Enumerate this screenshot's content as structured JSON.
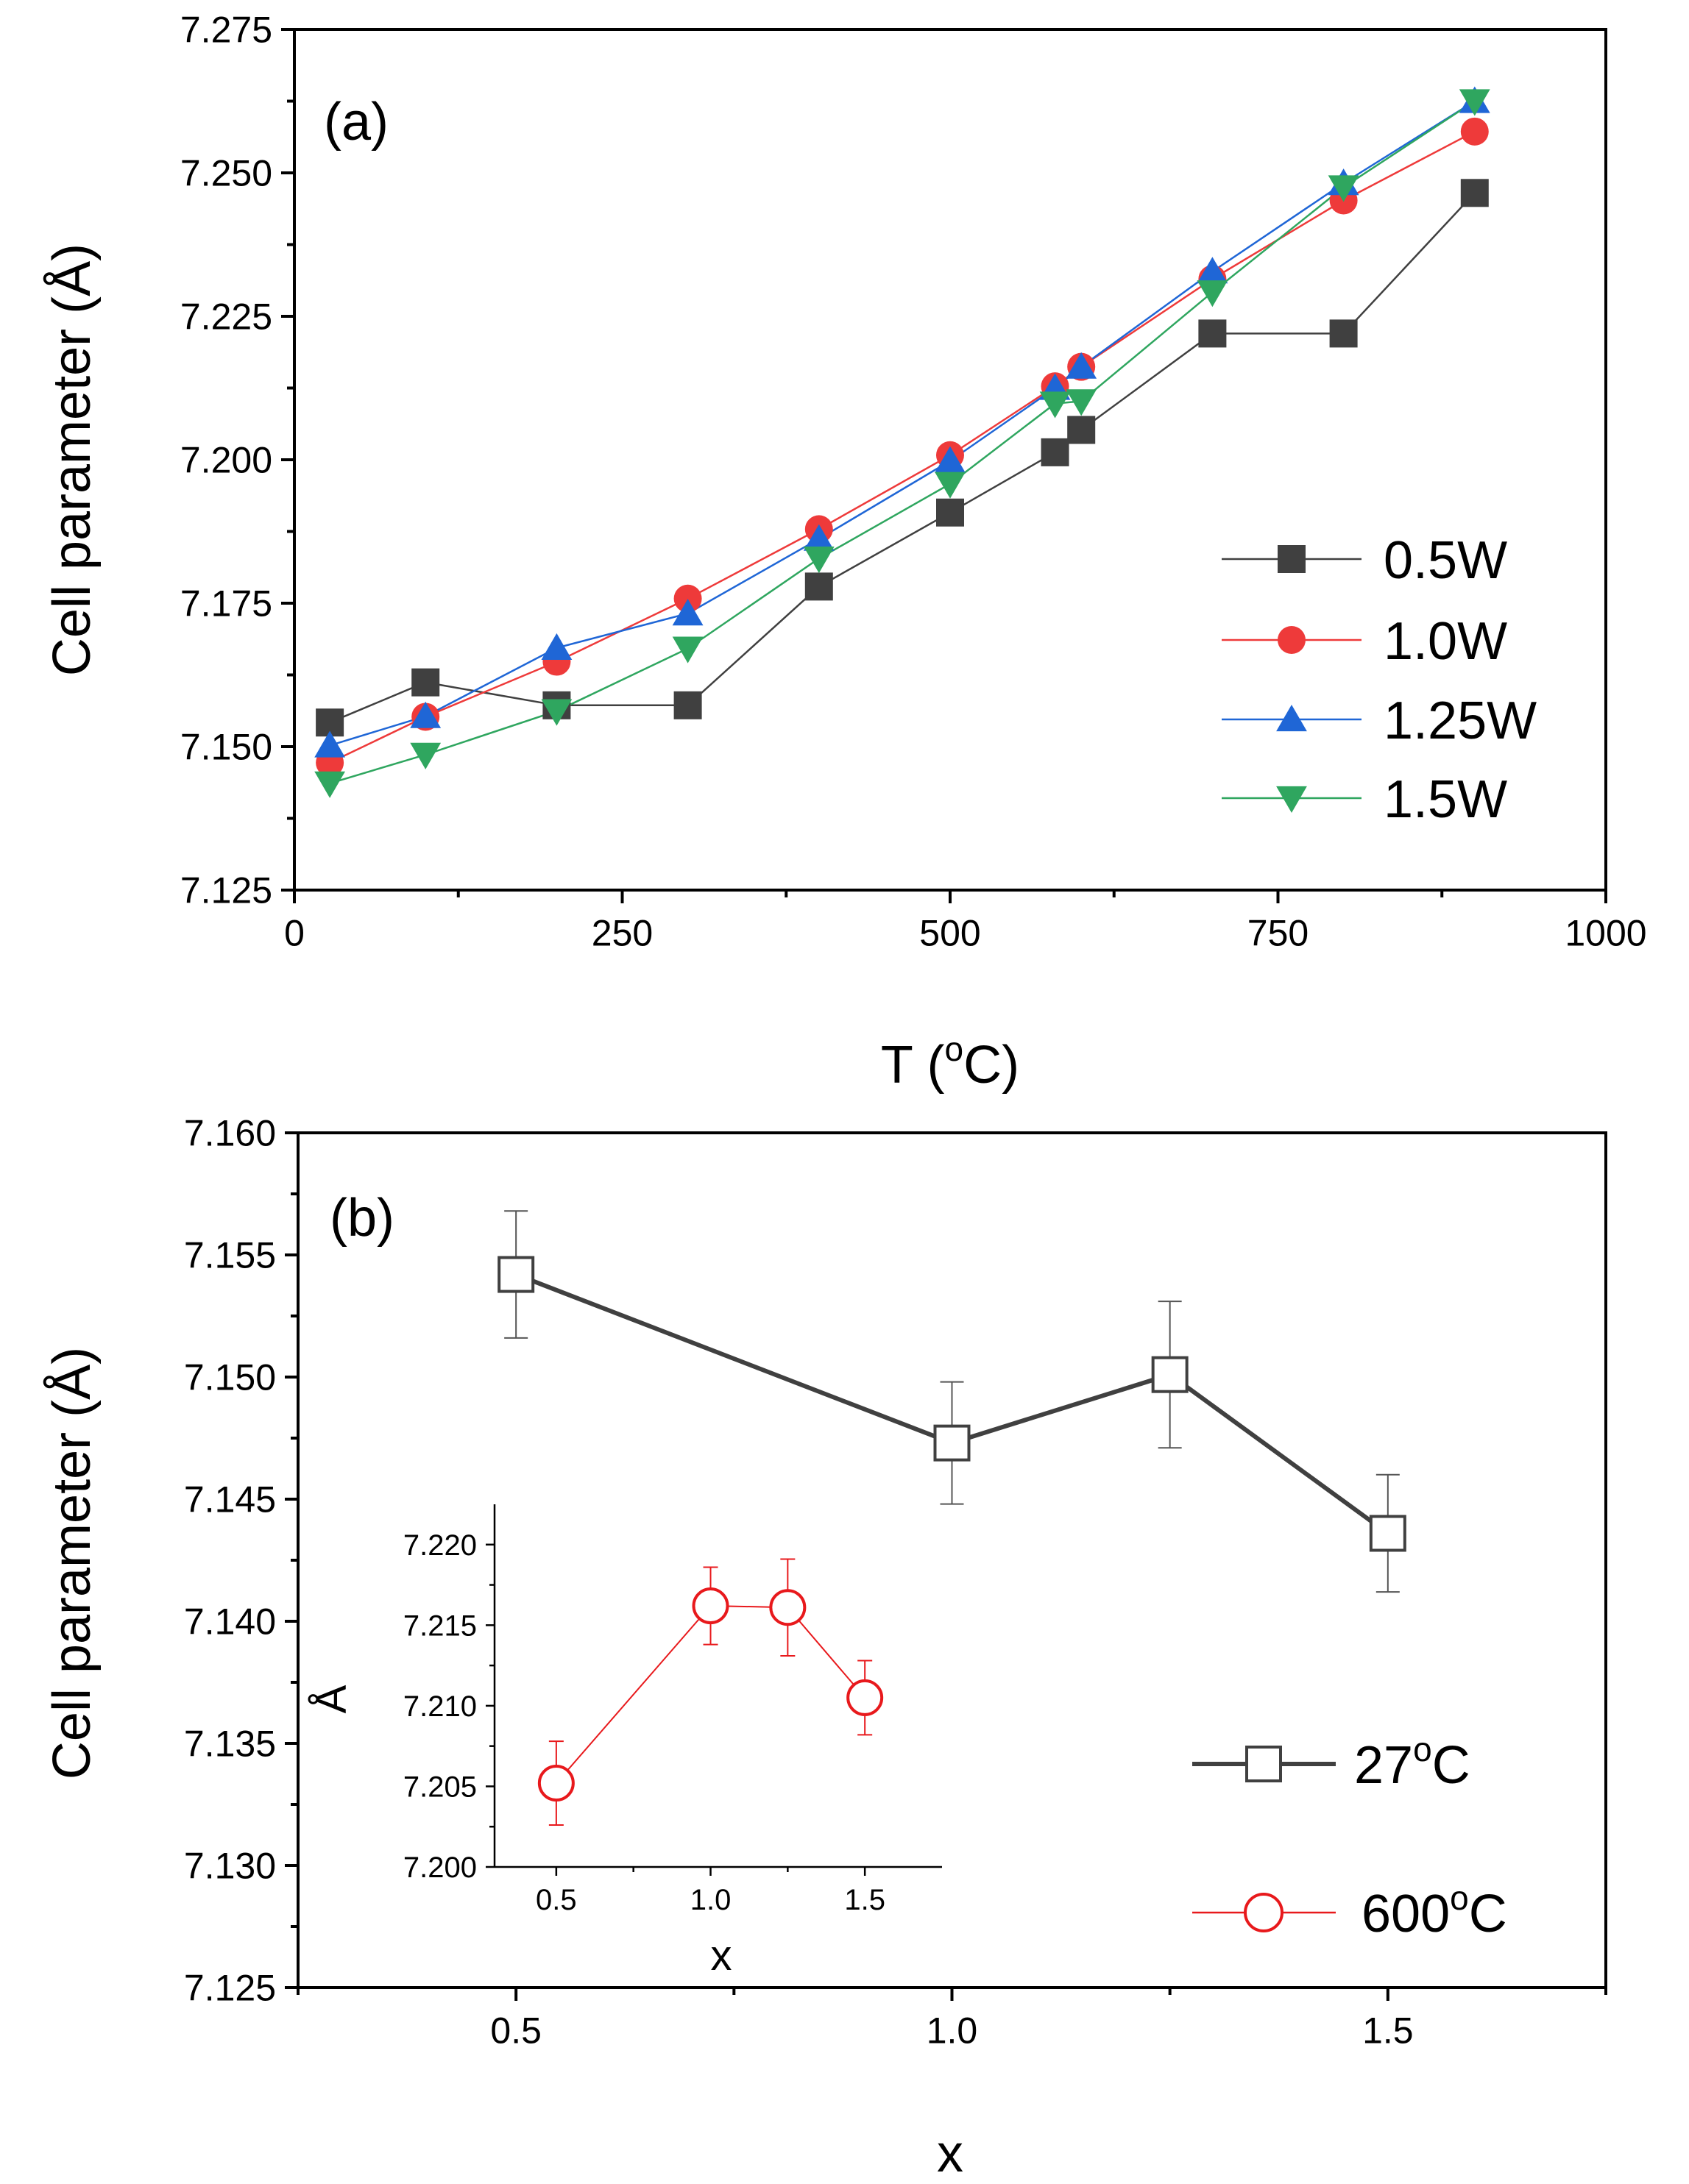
{
  "chart_data": [
    {
      "type": "line",
      "panel_label": "(a)",
      "xlabel_prefix": "T (",
      "xlabel_sup": "o",
      "xlabel_suffix": "C)",
      "ylabel": "Cell parameter (Å)",
      "xlim": [
        0,
        1000
      ],
      "ylim": [
        7.125,
        7.275
      ],
      "xticks": [
        0,
        250,
        500,
        750,
        1000
      ],
      "xtick_labels": [
        "0",
        "250",
        "500",
        "750",
        "1000"
      ],
      "yticks": [
        7.125,
        7.15,
        7.175,
        7.2,
        7.225,
        7.25,
        7.275
      ],
      "ytick_labels": [
        "7.125",
        "7.150",
        "7.175",
        "7.200",
        "7.225",
        "7.250",
        "7.275"
      ],
      "legend_position": "right",
      "series": [
        {
          "name": "0.5W",
          "marker": "square",
          "color": "#404040",
          "x": [
            27,
            100,
            200,
            300,
            400,
            500,
            580,
            600,
            700,
            800,
            900
          ],
          "values": [
            7.1542,
            7.1612,
            7.1572,
            7.1572,
            7.1779,
            7.1908,
            7.2013,
            7.2052,
            7.222,
            7.222,
            7.2465
          ]
        },
        {
          "name": "1.0W",
          "marker": "circle",
          "color": "#ee3a3a",
          "x": [
            27,
            100,
            200,
            300,
            400,
            500,
            580,
            600,
            700,
            800,
            900
          ],
          "values": [
            7.1472,
            7.1552,
            7.1648,
            7.1758,
            7.1879,
            7.2008,
            7.2128,
            7.2162,
            7.2315,
            7.2452,
            7.2572
          ]
        },
        {
          "name": "1.25W",
          "marker": "triangle",
          "color": "#1f66d6",
          "x": [
            27,
            100,
            200,
            300,
            400,
            500,
            580,
            600,
            700,
            800,
            900
          ],
          "values": [
            7.1502,
            7.1553,
            7.1672,
            7.1732,
            7.1862,
            7.1998,
            7.2125,
            7.2162,
            7.2328,
            7.2482,
            7.2625
          ]
        },
        {
          "name": "1.5W",
          "marker": "triangle-down",
          "color": "#2fa65f",
          "x": [
            27,
            100,
            200,
            300,
            400,
            500,
            580,
            600,
            700,
            800,
            900
          ],
          "values": [
            7.1436,
            7.1486,
            7.1562,
            7.1671,
            7.1828,
            7.1958,
            7.2098,
            7.2102,
            7.2292,
            7.2475,
            7.2625
          ]
        }
      ]
    },
    {
      "type": "line",
      "panel_label": "(b)",
      "xlabel": "x",
      "ylabel": "Cell parameter (Å)",
      "xlim": [
        0.25,
        1.75
      ],
      "ylim": [
        7.125,
        7.16
      ],
      "xticks": [
        0.5,
        1.0,
        1.5
      ],
      "xtick_labels": [
        "0.5",
        "1.0",
        "1.5"
      ],
      "yticks": [
        7.125,
        7.13,
        7.135,
        7.14,
        7.145,
        7.15,
        7.155,
        7.16
      ],
      "ytick_labels": [
        "7.125",
        "7.130",
        "7.135",
        "7.140",
        "7.145",
        "7.150",
        "7.155",
        "7.160"
      ],
      "legend_position": "bottom-right",
      "legend": [
        {
          "prefix": "27",
          "sup": "o",
          "suffix": "C",
          "color": "#404040",
          "marker": "open-square"
        },
        {
          "prefix": "600",
          "sup": "o",
          "suffix": "C",
          "color": "#e8191c",
          "marker": "open-circle"
        }
      ],
      "series": [
        {
          "name": "27°C",
          "marker": "open-square",
          "color": "#404040",
          "x": [
            0.5,
            1.0,
            1.25,
            1.5
          ],
          "values": [
            7.1542,
            7.1473,
            7.1501,
            7.1436
          ],
          "error": [
            0.0026,
            0.0025,
            0.003,
            0.0024
          ]
        }
      ],
      "inset": {
        "type": "line",
        "xlabel": "x",
        "ylabel": "Å",
        "xlim": [
          0.3,
          1.75
        ],
        "ylim": [
          7.2,
          7.2225
        ],
        "xticks": [
          0.5,
          1.0,
          1.5
        ],
        "xtick_labels": [
          "0.5",
          "1.0",
          "1.5"
        ],
        "yticks": [
          7.2,
          7.205,
          7.21,
          7.215,
          7.22
        ],
        "ytick_labels": [
          "7.200",
          "7.205",
          "7.210",
          "7.215",
          "7.220"
        ],
        "series": [
          {
            "name": "600°C",
            "marker": "open-circle",
            "color": "#e8191c",
            "x": [
              0.5,
              1.0,
              1.25,
              1.5
            ],
            "values": [
              7.2052,
              7.2162,
              7.2161,
              7.2105
            ],
            "error": [
              0.0026,
              0.0024,
              0.003,
              0.0023
            ]
          }
        ]
      }
    }
  ]
}
